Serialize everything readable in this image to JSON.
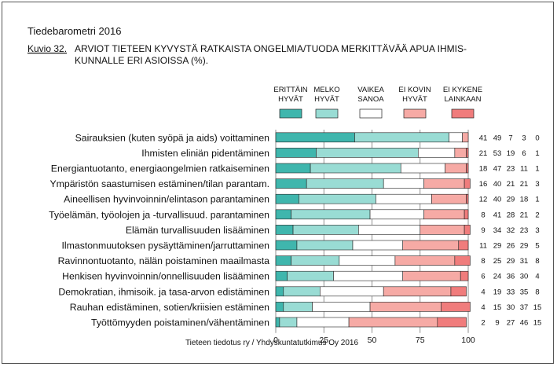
{
  "header": {
    "source_title": "Tiedebarometri 2016",
    "figure_label": "Kuvio 32.",
    "figure_title_line1": "ARVIOT TIETEEN KYVYSTÄ RATKAISTA ONGELMIA/TUODA MERKITTÄVÄÄ APUA IHMIS-",
    "figure_title_line2": "KUNNALLE ERI ASIOISSA (%)."
  },
  "footer": {
    "credit": "Tieteen tiedotus ry / Yhdyskuntatutkimus Oy 2016"
  },
  "chart_data": {
    "type": "bar",
    "orientation": "horizontal-stacked-100",
    "title": "ARVIOT TIETEEN KYVYSTÄ RATKAISTA ONGELMIA/TUODA MERKITTÄVÄÄ APUA IHMISKUNNALLE ERI ASIOISSA (%).",
    "xlim": [
      0,
      100
    ],
    "xticks": [
      0,
      25,
      50,
      75,
      100
    ],
    "legend_position": "top-right",
    "categories": [
      "Sairauksien (kuten syöpä ja aids) voittaminen",
      "Ihmisten eliniän pidentäminen",
      "Energiantuotanto, energiaongelmien ratkaiseminen",
      "Ympäristön saastumisen estäminen/tilan parantam.",
      "Aineellisen hyvinvoinnin/elintason parantaminen",
      "Työelämän, työolojen ja -turvallisuud. parantaminen",
      "Elämän turvallisuuden lisääminen",
      "Ilmastonmuutoksen pysäyttäminen/jarruttaminen",
      "Ravinnontuotanto, nälän poistaminen maailmasta",
      "Henkisen hyvinvoinnin/onnellisuuden lisääminen",
      "Demokratian, ihmisoik. ja tasa-arvon edistäminen",
      "Rauhan edistäminen, sotien/kriisien estäminen",
      "Työttömyyden poistaminen/vähentäminen"
    ],
    "series": [
      {
        "legend_line1": "ERITTÄIN",
        "legend_line2": "HYVÄT",
        "color": "#3fb6ad",
        "values": [
          41,
          21,
          18,
          16,
          12,
          8,
          9,
          11,
          8,
          6,
          4,
          4,
          2
        ]
      },
      {
        "legend_line1": "MELKO",
        "legend_line2": "HYVÄT",
        "color": "#99dcd4",
        "values": [
          49,
          53,
          47,
          40,
          40,
          41,
          34,
          29,
          25,
          24,
          19,
          15,
          9
        ]
      },
      {
        "legend_line1": "VAIKEA",
        "legend_line2": "SANOA",
        "color": "#ffffff",
        "values": [
          7,
          19,
          23,
          21,
          29,
          28,
          32,
          26,
          29,
          36,
          33,
          30,
          27
        ]
      },
      {
        "legend_line1": "EI KOVIN",
        "legend_line2": "HYVÄT",
        "color": "#f6aaa5",
        "values": [
          3,
          6,
          11,
          21,
          18,
          21,
          23,
          29,
          31,
          30,
          35,
          37,
          46
        ]
      },
      {
        "legend_line1": "EI KYKENE",
        "legend_line2": "LAINKAAN",
        "color": "#f07c7c",
        "values": [
          0,
          1,
          1,
          3,
          1,
          2,
          3,
          5,
          8,
          4,
          8,
          15,
          15
        ]
      }
    ]
  }
}
